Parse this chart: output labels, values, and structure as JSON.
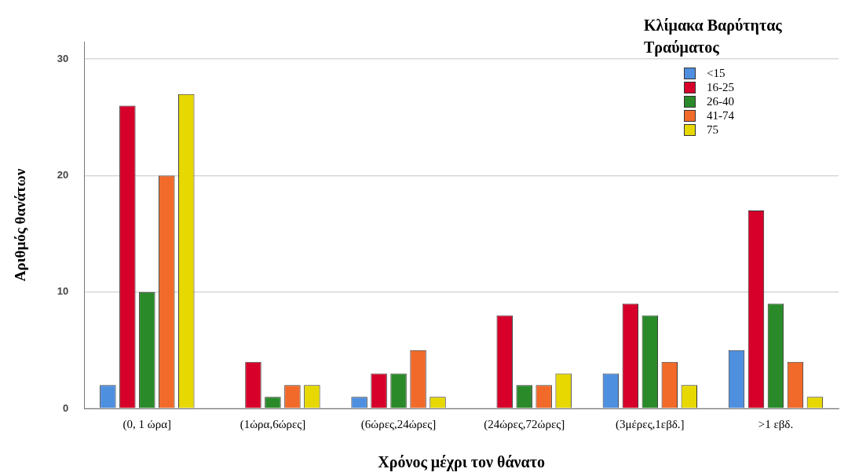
{
  "chart_data": {
    "type": "bar",
    "xlabel": "Χρόνος μέχρι τον θάνατο",
    "ylabel": "Αριθμός θανάτων",
    "legend_title": "Κλίμακα Βαρύτητας Τραύματος",
    "categories": [
      "(0, 1 ώρα]",
      "(1ώρα,6ώρες]",
      "(6ώρες,24ώρες]",
      "(24ώρες,72ώρες]",
      "(3μέρες,1εβδ.]",
      ">1 εβδ."
    ],
    "series": [
      {
        "name": "<15",
        "color": "#4f8fe0",
        "values": [
          2,
          null,
          1,
          null,
          3,
          5
        ]
      },
      {
        "name": "16-25",
        "color": "#d6002a",
        "values": [
          26,
          4,
          3,
          8,
          9,
          17
        ]
      },
      {
        "name": "26-40",
        "color": "#2a8a2a",
        "values": [
          10,
          1,
          3,
          2,
          8,
          9
        ]
      },
      {
        "name": "41-74",
        "color": "#f26a2a",
        "values": [
          20,
          2,
          5,
          2,
          4,
          4
        ]
      },
      {
        "name": "75",
        "color": "#e6d800",
        "values": [
          27,
          2,
          1,
          3,
          2,
          1
        ]
      }
    ],
    "ylim": [
      0,
      31.5
    ],
    "yticks": [
      0,
      10,
      20,
      30
    ],
    "grid": "y",
    "legend": "top right"
  }
}
